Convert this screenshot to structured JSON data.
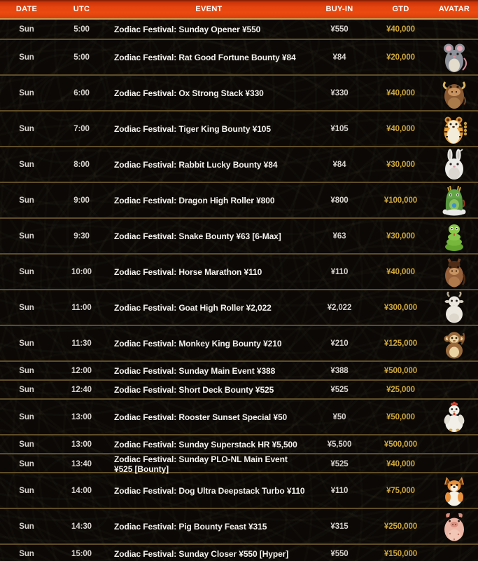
{
  "table": {
    "columns": [
      {
        "key": "date",
        "label": "DATE"
      },
      {
        "key": "utc",
        "label": "UTC"
      },
      {
        "key": "event",
        "label": "EVENT"
      },
      {
        "key": "buyin",
        "label": "BUY-IN"
      },
      {
        "key": "gtd",
        "label": "GTD"
      },
      {
        "key": "avatar",
        "label": "AVATAR"
      }
    ],
    "rows": [
      {
        "date": "Sun",
        "utc": "5:00",
        "event": "Zodiac Festival: Sunday Opener ¥550",
        "buyin": "¥550",
        "gtd": "¥40,000",
        "avatar": null,
        "size": "short"
      },
      {
        "date": "Sun",
        "utc": "5:00",
        "event": "Zodiac Festival: Rat Good Fortune Bounty ¥84",
        "buyin": "¥84",
        "gtd": "¥20,000",
        "avatar": "rat",
        "size": "tall"
      },
      {
        "date": "Sun",
        "utc": "6:00",
        "event": "Zodiac Festival: Ox Strong Stack ¥330",
        "buyin": "¥330",
        "gtd": "¥40,000",
        "avatar": "ox",
        "size": "tall"
      },
      {
        "date": "Sun",
        "utc": "7:00",
        "event": "Zodiac Festival: Tiger King Bounty ¥105",
        "buyin": "¥105",
        "gtd": "¥40,000",
        "avatar": "tiger",
        "size": "tall"
      },
      {
        "date": "Sun",
        "utc": "8:00",
        "event": "Zodiac Festival: Rabbit Lucky Bounty ¥84",
        "buyin": "¥84",
        "gtd": "¥30,000",
        "avatar": "rabbit",
        "size": "tall"
      },
      {
        "date": "Sun",
        "utc": "9:00",
        "event": "Zodiac Festival: Dragon High Roller ¥800",
        "buyin": "¥800",
        "gtd": "¥100,000",
        "avatar": "dragon",
        "size": "tall"
      },
      {
        "date": "Sun",
        "utc": "9:30",
        "event": "Zodiac Festival: Snake Bounty ¥63 [6-Max]",
        "buyin": "¥63",
        "gtd": "¥30,000",
        "avatar": "snake",
        "size": "tall"
      },
      {
        "date": "Sun",
        "utc": "10:00",
        "event": "Zodiac Festival: Horse Marathon ¥110",
        "buyin": "¥110",
        "gtd": "¥40,000",
        "avatar": "horse",
        "size": "tall"
      },
      {
        "date": "Sun",
        "utc": "11:00",
        "event": "Zodiac Festival: Goat High Roller ¥2,022",
        "buyin": "¥2,022",
        "gtd": "¥300,000",
        "avatar": "goat",
        "size": "tall"
      },
      {
        "date": "Sun",
        "utc": "11:30",
        "event": "Zodiac Festival: Monkey King Bounty ¥210",
        "buyin": "¥210",
        "gtd": "¥125,000",
        "avatar": "monkey",
        "size": "tall"
      },
      {
        "date": "Sun",
        "utc": "12:00",
        "event": "Zodiac Festival: Sunday Main Event ¥388",
        "buyin": "¥388",
        "gtd": "¥500,000",
        "avatar": null,
        "size": "short"
      },
      {
        "date": "Sun",
        "utc": "12:40",
        "event": "Zodiac Festival: Short Deck Bounty ¥525",
        "buyin": "¥525",
        "gtd": "¥25,000",
        "avatar": null,
        "size": "short"
      },
      {
        "date": "Sun",
        "utc": "13:00",
        "event": "Zodiac Festival: Rooster Sunset Special ¥50",
        "buyin": "¥50",
        "gtd": "¥50,000",
        "avatar": "rooster",
        "size": "tall"
      },
      {
        "date": "Sun",
        "utc": "13:00",
        "event": "Zodiac Festival: Sunday Superstack HR ¥5,500",
        "buyin": "¥5,500",
        "gtd": "¥500,000",
        "avatar": null,
        "size": "short"
      },
      {
        "date": "Sun",
        "utc": "13:40",
        "event": "Zodiac Festival: Sunday PLO-NL Main Event ¥525 [Bounty]",
        "buyin": "¥525",
        "gtd": "¥40,000",
        "avatar": null,
        "size": "short"
      },
      {
        "date": "Sun",
        "utc": "14:00",
        "event": "Zodiac Festival: Dog Ultra Deepstack Turbo ¥110",
        "buyin": "¥110",
        "gtd": "¥75,000",
        "avatar": "dog",
        "size": "tall"
      },
      {
        "date": "Sun",
        "utc": "14:30",
        "event": "Zodiac Festival: Pig Bounty Feast ¥315",
        "buyin": "¥315",
        "gtd": "¥250,000",
        "avatar": "pig",
        "size": "tall"
      },
      {
        "date": "Sun",
        "utc": "15:00",
        "event": "Zodiac Festival: Sunday Closer ¥550 [Hyper]",
        "buyin": "¥550",
        "gtd": "¥150,000",
        "avatar": null,
        "size": "short"
      }
    ]
  },
  "colors": {
    "header_gradient_top": "#7e1c05",
    "header_gradient_main": "#e5440e",
    "header_separator": "#cd9a52",
    "row_separator": "#5e4c28",
    "gtd_gold": "#cfa83e",
    "event_text": "#f5f2ee",
    "muted_text": "#d8d3ce",
    "background": "#0b0806"
  }
}
